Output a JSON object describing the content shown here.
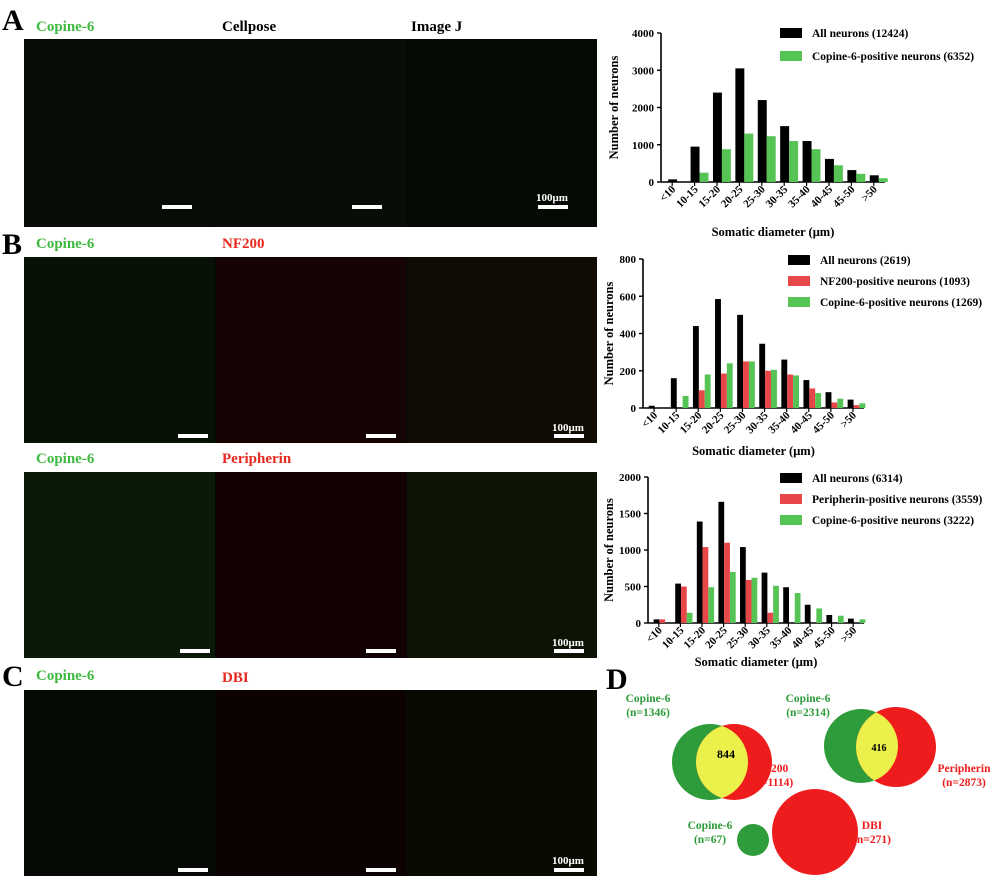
{
  "panels": {
    "a": {
      "letter": "A",
      "images": [
        "Copine-6",
        "Cellpose",
        "Image J"
      ],
      "scale_label": "100μm"
    },
    "b": {
      "letter": "B",
      "top_images": [
        "Copine-6",
        "NF200"
      ],
      "bottom_images": [
        "Copine-6",
        "Peripherin"
      ],
      "scale_label": "100μm"
    },
    "c": {
      "letter": "C",
      "images": [
        "Copine-6",
        "DBI"
      ],
      "scale_label": "100μm"
    },
    "d": {
      "letter": "D"
    }
  },
  "colors": {
    "all": "#000000",
    "green": "#55c455",
    "red": "#e8474a",
    "venn_green": "#2e9c3a",
    "venn_red": "#ee1c1c",
    "venn_overlap": "#ecf04a"
  },
  "chart_data": [
    {
      "type": "bar",
      "categories": [
        "<10",
        "10-15",
        "15-20",
        "20-25",
        "25-30",
        "30-35",
        "35-40",
        "40-45",
        "45-50",
        ">50"
      ],
      "series": [
        {
          "name": "All neurons (12424)",
          "color": "#000000",
          "values": [
            70,
            950,
            2400,
            3050,
            2200,
            1500,
            1100,
            620,
            320,
            180
          ]
        },
        {
          "name": "Copine-6-positive neurons (6352)",
          "color": "#55c455",
          "values": [
            0,
            250,
            880,
            1300,
            1230,
            1100,
            880,
            450,
            220,
            100
          ]
        }
      ],
      "xlabel": "Somatic diameter (μm)",
      "ylabel": "Number of neurons",
      "ylim": [
        0,
        4000
      ],
      "yticks": [
        0,
        1000,
        2000,
        3000,
        4000
      ],
      "legend": "top-right"
    },
    {
      "type": "bar",
      "categories": [
        "<10",
        "10-15",
        "15-20",
        "20-25",
        "25-30",
        "30-35",
        "35-40",
        "40-45",
        "45-50",
        ">50"
      ],
      "series": [
        {
          "name": "All neurons (2619)",
          "color": "#000000",
          "values": [
            12,
            160,
            440,
            585,
            500,
            345,
            260,
            150,
            85,
            45
          ]
        },
        {
          "name": "NF200-positive neurons (1093)",
          "color": "#e8474a",
          "values": [
            0,
            0,
            95,
            185,
            250,
            200,
            180,
            105,
            30,
            15
          ]
        },
        {
          "name": "Copine-6-positive neurons (1269)",
          "color": "#55c455",
          "values": [
            0,
            65,
            180,
            240,
            250,
            205,
            175,
            80,
            50,
            25
          ]
        }
      ],
      "xlabel": "Somatic diameter (μm)",
      "ylabel": "Number of neurons",
      "ylim": [
        0,
        800
      ],
      "yticks": [
        0,
        200,
        400,
        600,
        800
      ],
      "legend": "top-right"
    },
    {
      "type": "bar",
      "categories": [
        "<10",
        "10-15",
        "15-20",
        "20-25",
        "25-30",
        "30-35",
        "35-40",
        "40-45",
        "45-50",
        ">50"
      ],
      "series": [
        {
          "name": "All neurons (6314)",
          "color": "#000000",
          "values": [
            50,
            540,
            1390,
            1660,
            1040,
            690,
            490,
            250,
            110,
            60
          ]
        },
        {
          "name": "Peripherin-positive neurons (3559)",
          "color": "#e8474a",
          "values": [
            50,
            500,
            1040,
            1100,
            590,
            140,
            0,
            0,
            0,
            0
          ]
        },
        {
          "name": "Copine-6-positive neurons (3222)",
          "color": "#55c455",
          "values": [
            0,
            140,
            490,
            700,
            620,
            510,
            410,
            200,
            100,
            50
          ]
        }
      ],
      "xlabel": "Somatic diameter (μm)",
      "ylabel": "Number of neurons",
      "ylim": [
        0,
        2000
      ],
      "yticks": [
        0,
        500,
        1000,
        1500,
        2000
      ],
      "legend": "top-right"
    }
  ],
  "venn": [
    {
      "left_label": "Copine-6",
      "left_count": "(n=1346)",
      "right_label": "NF200",
      "right_count": "(n=1114)",
      "overlap": "844"
    },
    {
      "left_label": "Copine-6",
      "left_count": "(n=2314)",
      "right_label": "Peripherin",
      "right_count": "(n=2873)",
      "overlap": "416"
    },
    {
      "left_label": "Copine-6",
      "left_count": "(n=67)",
      "right_label": "DBI",
      "right_count": "(n=271)",
      "overlap": ""
    }
  ]
}
